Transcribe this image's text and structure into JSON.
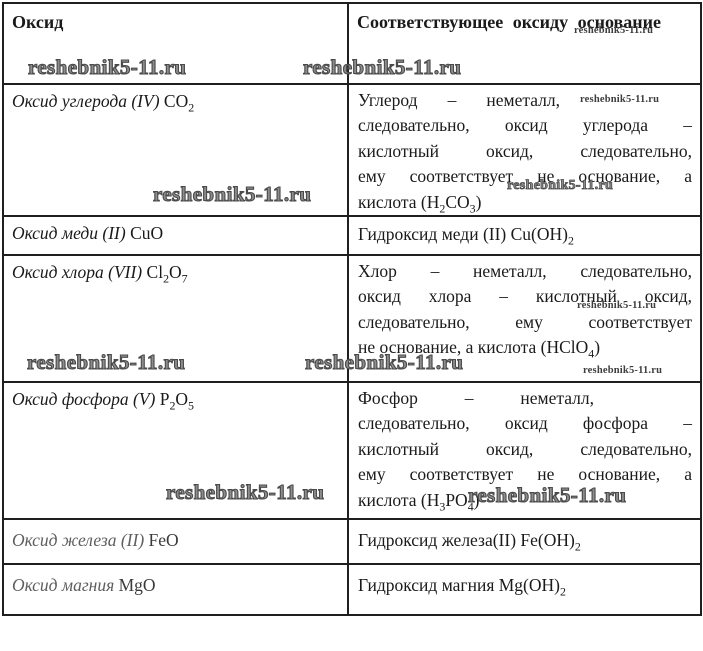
{
  "watermark": {
    "text": "reshebnik5-11.ru",
    "color": "#8d8d8d"
  },
  "colors": {
    "text": "#1a1a1a",
    "border": "#1f1f1f"
  },
  "table": {
    "header": {
      "left": "Оксид",
      "right": "Соответствующее оксиду основание"
    },
    "rows": [
      {
        "oxide_name": "Оксид углерода (IV) ",
        "oxide_formula": "CO2",
        "base_lines": [
          "Углерод – неметалл,",
          "следовательно, оксид углерода –",
          "кислотный оксид, следовательно,",
          "ему соответствует не основание, а",
          "кислота (H2CO3)"
        ]
      },
      {
        "oxide_name": "Оксид меди (II) ",
        "oxide_formula": "CuO",
        "base_text": "Гидроксид меди (II) Cu(OH)2"
      },
      {
        "oxide_name": "Оксид хлора (VII) ",
        "oxide_formula": "Cl2O7",
        "base_lines": [
          "Хлор – неметалл, следовательно,",
          "оксид хлора – кислотный оксид,",
          "следовательно, ему соответствует",
          "не основание, а кислота (HClO4)"
        ]
      },
      {
        "oxide_name": "Оксид фосфора (V) ",
        "oxide_formula": "P2O5",
        "base_lines": [
          "Фосфор – неметалл,",
          "следовательно, оксид фосфора –",
          "кислотный оксид, следовательно,",
          "ему соответствует не основание, а",
          "кислота (H3PO4)"
        ]
      },
      {
        "oxide_name": "Оксид железа (II) ",
        "oxide_formula": "FeO",
        "base_text": "Гидроксид железа(II) Fe(OH)2"
      },
      {
        "oxide_name": "Оксид магния ",
        "oxide_formula": "MgO",
        "base_text": "Гидроксид магния Mg(OH)2"
      }
    ]
  }
}
